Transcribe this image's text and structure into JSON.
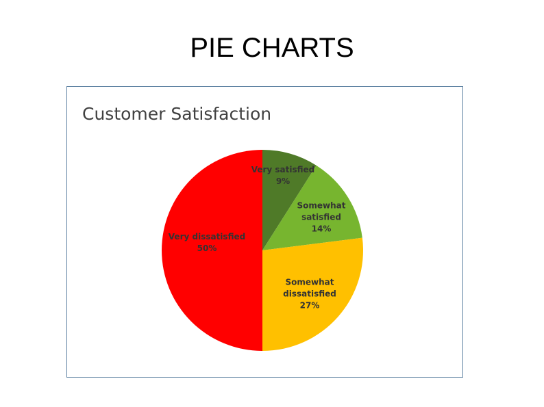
{
  "page_title": "PIE CHARTS",
  "chart_data": {
    "type": "pie",
    "title": "Customer Satisfaction",
    "categories": [
      "Very satisfied",
      "Somewhat satisfied",
      "Somewhat dissatisfied",
      "Very dissatisfied"
    ],
    "values": [
      9,
      14,
      27,
      50
    ],
    "value_labels": [
      "9%",
      "14%",
      "27%",
      "50%"
    ],
    "colors": [
      "#4f7a28",
      "#77b52f",
      "#ffc000",
      "#ff0000"
    ]
  }
}
